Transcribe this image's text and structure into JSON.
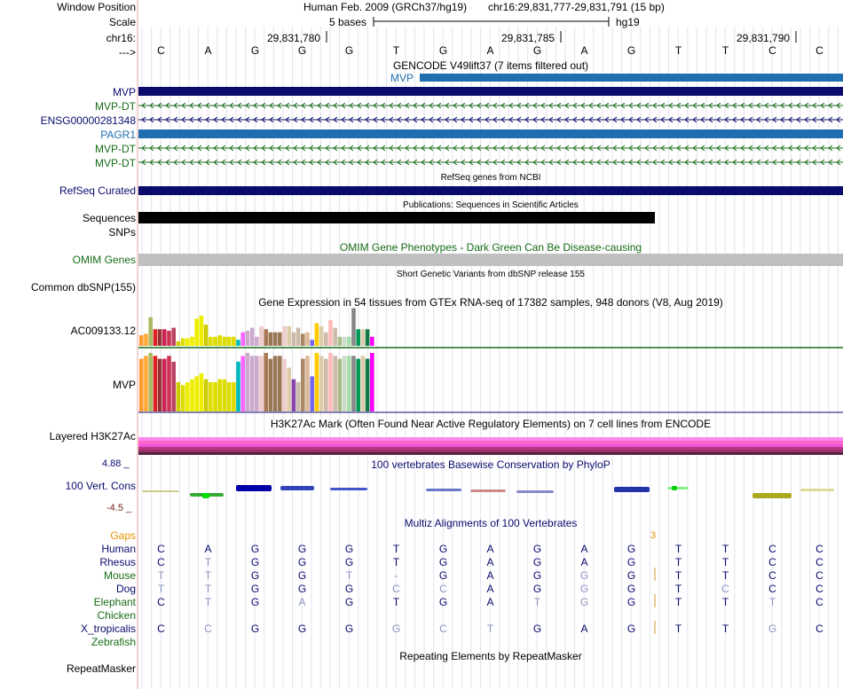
{
  "header": {
    "window_position_label": "Window Position",
    "scale_label": "Scale",
    "chrom_label": "chr16:",
    "strand_label": "--->",
    "assembly_text": "Human Feb. 2009 (GRCh37/hg19)",
    "position_text": "chr16:29,831,777-29,831,791 (15 bp)",
    "scale_text": "5 bases",
    "db_text": "hg19",
    "coordinates": [
      "29,831,780",
      "29,831,785",
      "29,831,790"
    ]
  },
  "bases": [
    "C",
    "A",
    "G",
    "G",
    "G",
    "T",
    "G",
    "A",
    "G",
    "A",
    "G",
    "T",
    "T",
    "C",
    "C"
  ],
  "tracks": {
    "gencode_title": "GENCODE V49lift37 (7 items filtered out)",
    "gencode_overlay_label": "MVP",
    "gencode_items": [
      {
        "label": "MVP",
        "color": "#0b0b6e",
        "kind": "solid"
      },
      {
        "label": "MVP-DT",
        "color": "#176c17",
        "kind": "arrows"
      },
      {
        "label": "ENSG00000281348",
        "color": "#0b0b6e",
        "kind": "arrows"
      },
      {
        "label": "PAGR1",
        "color": "#1f6fb0",
        "kind": "solid"
      },
      {
        "label": "MVP-DT",
        "color": "#176c17",
        "kind": "arrows"
      },
      {
        "label": "MVP-DT",
        "color": "#176c17",
        "kind": "arrows"
      }
    ],
    "refseq_title": "RefSeq genes from NCBI",
    "refseq_label": "RefSeq Curated",
    "publications_title": "Publications: Sequences in Scientific Articles",
    "sequences_label": "Sequences",
    "snps_label": "SNPs",
    "omim_title": "OMIM Gene Phenotypes - Dark Green Can Be Disease-causing",
    "omim_label": "OMIM Genes",
    "dbsnp_title": "Short Genetic Variants from dbSNP release 155",
    "dbsnp_label": "Common dbSNP(155)",
    "gtex_title": "Gene Expression in 54 tissues from GTEx RNA-seq of 17382 samples, 948 donors (V8, Aug 2019)",
    "gtex_labels": [
      "AC009133.12",
      "MVP"
    ],
    "h3k27ac_title": "H3K27Ac Mark (Often Found Near Active Regulatory Elements) on 7 cell lines from ENCODE",
    "h3k27ac_label": "Layered H3K27Ac",
    "phylop_title": "100 vertebrates Basewise Conservation by PhyloP",
    "phylop_label": "100 Vert. Cons",
    "phylop_max": "4.88 _",
    "phylop_min": "-4.5 _",
    "multiz_title": "Multiz Alignments of 100 Vertebrates",
    "gaps_label": "Gaps",
    "gap_count": "3",
    "repeat_title": "Repeating Elements by RepeatMasker",
    "repeat_label": "RepeatMasker"
  },
  "alignment": [
    {
      "species": "Human",
      "color": "#0b0b6e",
      "bases": [
        "C",
        "A",
        "G",
        "G",
        "G",
        "T",
        "G",
        "A",
        "G",
        "A",
        "G",
        "T",
        "T",
        "C",
        "C"
      ]
    },
    {
      "species": "Rhesus",
      "color": "#0b0b6e",
      "bases": [
        "C",
        "T",
        "G",
        "G",
        "G",
        "T",
        "G",
        "A",
        "G",
        "A",
        "G",
        "T",
        "T",
        "C",
        "C"
      ]
    },
    {
      "species": "Mouse",
      "color": "#176c17",
      "bases": [
        "T",
        "T",
        "G",
        "G",
        "T",
        "-",
        "G",
        "A",
        "G",
        "G",
        "G",
        "T",
        "T",
        "C",
        "C"
      ]
    },
    {
      "species": "Dog",
      "color": "#0b0b6e",
      "bases": [
        "T",
        "T",
        "G",
        "G",
        "G",
        "C",
        "C",
        "A",
        "G",
        "G",
        "G",
        "T",
        "C",
        "C",
        "C"
      ]
    },
    {
      "species": "Elephant",
      "color": "#176c17",
      "bases": [
        "C",
        "T",
        "G",
        "A",
        "G",
        "T",
        "G",
        "A",
        "T",
        "G",
        "G",
        "T",
        "T",
        "T",
        "C"
      ]
    },
    {
      "species": "Chicken",
      "color": "#176c17",
      "bases": [
        "",
        "",
        "",
        "",
        "",
        "",
        "",
        "",
        "",
        "",
        "",
        "",
        "",
        "",
        ""
      ]
    },
    {
      "species": "X_tropicalis",
      "color": "#0b0b6e",
      "bases": [
        "C",
        "C",
        "G",
        "G",
        "G",
        "G",
        "C",
        "T",
        "G",
        "A",
        "G",
        "T",
        "T",
        "G",
        "C"
      ]
    },
    {
      "species": "Zebrafish",
      "color": "#176c17",
      "bases": [
        "",
        "",
        "",
        "",
        "",
        "",
        "",
        "",
        "",
        "",
        "",
        "",
        "",
        "",
        ""
      ]
    }
  ],
  "gtex_chart_data": [
    {
      "type": "bar",
      "title": "AC009133.12",
      "values": [
        0.35,
        0.4,
        0.95,
        0.55,
        0.55,
        0.55,
        0.5,
        0.6,
        0.15,
        0.25,
        0.25,
        0.3,
        0.9,
        1.0,
        0.7,
        0.3,
        0.3,
        0.35,
        0.3,
        0.3,
        0.3,
        0.2,
        0.45,
        0.5,
        0.6,
        0.3,
        0.65,
        0.55,
        0.45,
        0.45,
        0.45,
        0.65,
        0.65,
        0.45,
        0.6,
        0.4,
        0.45,
        0.2,
        0.75,
        0.65,
        0.45,
        0.85,
        0.6,
        0.3,
        0.3,
        0.3,
        1.25,
        0.55,
        0.55,
        0.55,
        0.3
      ],
      "colors": [
        "#ff9933",
        "#ffaa33",
        "#aabb66",
        "#dd2222",
        "#993333",
        "#cc2255",
        "#cc3355",
        "#bb4466",
        "#cccc00",
        "#dddd00",
        "#eeee00",
        "#eeee00",
        "#eeee00",
        "#eeee00",
        "#cccc00",
        "#dddd00",
        "#dddd00",
        "#dddd00",
        "#dddd00",
        "#dddd00",
        "#dddd00",
        "#00bbbb",
        "#ff66ff",
        "#ccaacc",
        "#ccaacc",
        "#ccaacc",
        "#eecccc",
        "#aa7755",
        "#997755",
        "#997755",
        "#997755",
        "#eecccc",
        "#ddccaa",
        "#ccbbaa",
        "#ccbbaa",
        "#aa8866",
        "#ddbb99",
        "#7766ee",
        "#ffcc00",
        "#ddccaa",
        "#ccbbaa",
        "#ffbbbb",
        "#ccbbaa",
        "#aabb88",
        "#ccddcc",
        "#aaddaa",
        "#888888",
        "#009955",
        "#ddccaa",
        "#117744",
        "#ff00ff"
      ]
    },
    {
      "type": "bar",
      "title": "MVP",
      "values": [
        0.9,
        0.95,
        1.0,
        0.95,
        0.9,
        0.9,
        0.95,
        0.85,
        0.5,
        0.45,
        0.5,
        0.55,
        0.6,
        0.65,
        0.55,
        0.5,
        0.5,
        0.55,
        0.55,
        0.5,
        0.5,
        0.85,
        0.95,
        1.0,
        0.95,
        0.95,
        0.95,
        1.0,
        0.9,
        0.95,
        0.95,
        0.9,
        0.75,
        0.55,
        0.5,
        0.9,
        0.95,
        0.6,
        1.0,
        0.95,
        0.9,
        1.0,
        0.95,
        0.9,
        0.95,
        0.95,
        0.95,
        0.9,
        0.95,
        0.9,
        1.0
      ],
      "colors": [
        "#ff9933",
        "#ffaa33",
        "#aabb66",
        "#dd2222",
        "#993333",
        "#cc2255",
        "#cc3355",
        "#bb4466",
        "#cccc00",
        "#dddd00",
        "#eeee00",
        "#eeee00",
        "#eeee00",
        "#eeee00",
        "#cccc00",
        "#dddd00",
        "#dddd00",
        "#dddd00",
        "#dddd00",
        "#dddd00",
        "#dddd00",
        "#00bbbb",
        "#ff66ff",
        "#ccaacc",
        "#ccaacc",
        "#ccaacc",
        "#eecccc",
        "#aa7755",
        "#997755",
        "#997755",
        "#997755",
        "#eecccc",
        "#ddccaa",
        "#8844aa",
        "#ccbbaa",
        "#aa8866",
        "#ddbb99",
        "#7766ee",
        "#ffcc00",
        "#ddccaa",
        "#ccbbaa",
        "#ffbbbb",
        "#ccbbaa",
        "#aabb88",
        "#ccddcc",
        "#aaddaa",
        "#888888",
        "#009955",
        "#ddccaa",
        "#117744",
        "#ff00ff"
      ]
    }
  ]
}
